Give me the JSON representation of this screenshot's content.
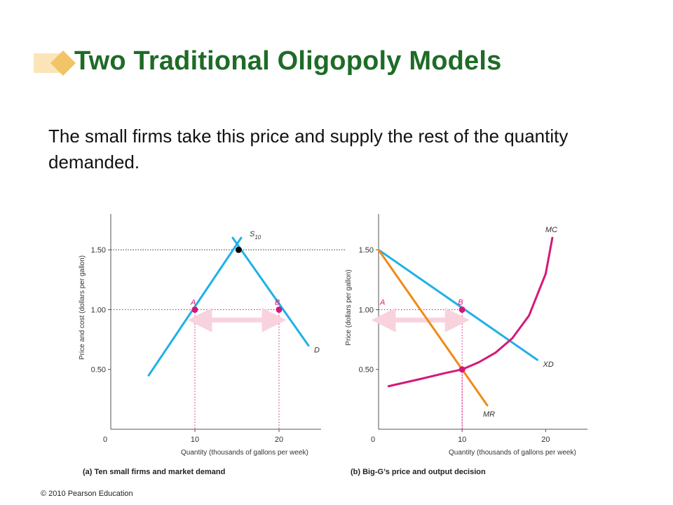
{
  "slide": {
    "title": "Two Traditional Oligopoly Models",
    "body": "The small firms take this price and supply the rest of the quantity demanded.",
    "copyright": "© 2010 Pearson Education"
  },
  "colors": {
    "title": "#1e6b27",
    "marker_light": "#fbe5b8",
    "marker_dark": "#f2c468",
    "blue": "#1fb1e6",
    "magenta": "#d4187a",
    "orange": "#ef8a17",
    "arrow": "#f8d3de",
    "dotted_black": "#333333"
  },
  "chart_data": [
    {
      "type": "line",
      "caption": "(a) Ten small firms and market demand",
      "xlabel": "Quantity (thousands of gallons per week)",
      "ylabel": "Price and cost (dollars per gallon)",
      "xlim": [
        0,
        25
      ],
      "ylim": [
        0,
        1.8
      ],
      "x_ticks": [
        "0",
        "10",
        "20"
      ],
      "y_ticks": [
        "0.50",
        "1.00",
        "1.50"
      ],
      "series": [
        {
          "name": "S10",
          "label_main": "S",
          "label_sub": "10",
          "color": "blue",
          "points": [
            [
              4.5,
              0.45
            ],
            [
              15.5,
              1.6
            ]
          ]
        },
        {
          "name": "D",
          "label_main": "D",
          "color": "blue",
          "points": [
            [
              14.5,
              1.6
            ],
            [
              23.5,
              0.7
            ]
          ]
        }
      ],
      "points": [
        {
          "label": "",
          "x": 15.2,
          "y": 1.5,
          "color": "#000000"
        },
        {
          "label": "A",
          "x": 10,
          "y": 1.0,
          "color": "magenta"
        },
        {
          "label": "B",
          "x": 20,
          "y": 1.0,
          "color": "magenta"
        }
      ],
      "arrow": {
        "x_from": 10,
        "x_to": 20,
        "y": 0.96
      }
    },
    {
      "type": "line",
      "caption": "(b) Big-G’s price and output decision",
      "xlabel": "Quantity (thousands of gallons per week)",
      "ylabel": "Price (dollars per gallon)",
      "xlim": [
        0,
        25
      ],
      "ylim": [
        0,
        1.8
      ],
      "x_ticks": [
        "0",
        "10",
        "20"
      ],
      "y_ticks": [
        "0.50",
        "1.00",
        "1.50"
      ],
      "series": [
        {
          "name": "XD",
          "label_main": "XD",
          "color": "blue",
          "points": [
            [
              0,
              1.5
            ],
            [
              19,
              0.58
            ]
          ]
        },
        {
          "name": "MR",
          "label_main": "MR",
          "color": "orange",
          "points": [
            [
              0,
              1.5
            ],
            [
              13,
              0.2
            ]
          ]
        },
        {
          "name": "MC",
          "label_main": "MC",
          "color": "magenta",
          "points": [
            [
              1.2,
              0.36
            ],
            [
              5,
              0.42
            ],
            [
              8,
              0.47
            ],
            [
              10,
              0.5
            ],
            [
              12,
              0.56
            ],
            [
              14,
              0.64
            ],
            [
              16,
              0.76
            ],
            [
              18,
              0.95
            ],
            [
              20,
              1.3
            ],
            [
              20.8,
              1.6
            ]
          ]
        }
      ],
      "points": [
        {
          "label": "A",
          "x": 0,
          "y": 1.0,
          "color": "none"
        },
        {
          "label": "B",
          "x": 10,
          "y": 1.0,
          "color": "magenta"
        },
        {
          "label": "",
          "x": 10,
          "y": 0.5,
          "color": "magenta"
        }
      ],
      "arrow": {
        "x_from": 0,
        "x_to": 10,
        "y": 0.96
      }
    }
  ]
}
